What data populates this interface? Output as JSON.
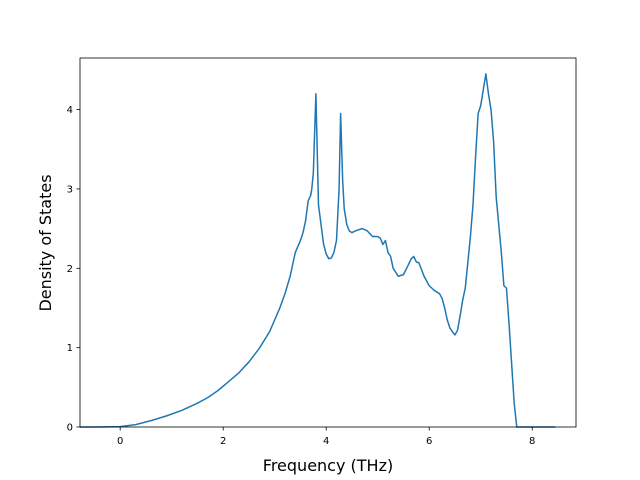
{
  "chart_data": {
    "type": "line",
    "title": "",
    "xlabel": "Frequency (THz)",
    "ylabel": "Density of States",
    "xlim": [
      -0.78,
      8.85
    ],
    "ylim": [
      0,
      4.65
    ],
    "x_ticks": [
      0,
      2,
      4,
      6,
      8
    ],
    "y_ticks": [
      0,
      1,
      2,
      3,
      4
    ],
    "grid": false,
    "legend": "none",
    "line_color": "#1f77b4",
    "series": [
      {
        "x": [
          -0.78,
          -0.4,
          0.0,
          0.3,
          0.6,
          0.9,
          1.2,
          1.5,
          1.7,
          1.9,
          2.1,
          2.3,
          2.5,
          2.7,
          2.9,
          3.0,
          3.1,
          3.2,
          3.3,
          3.4,
          3.5,
          3.55,
          3.6,
          3.65,
          3.7,
          3.72,
          3.75,
          3.8,
          3.85,
          3.9,
          3.95,
          4.0,
          4.05,
          4.1,
          4.15,
          4.2,
          4.25,
          4.28,
          4.32,
          4.35,
          4.4,
          4.45,
          4.5,
          4.6,
          4.7,
          4.8,
          4.9,
          5.0,
          5.05,
          5.1,
          5.15,
          5.2,
          5.25,
          5.3,
          5.4,
          5.5,
          5.6,
          5.65,
          5.7,
          5.75,
          5.8,
          5.9,
          6.0,
          6.1,
          6.2,
          6.25,
          6.3,
          6.35,
          6.4,
          6.45,
          6.5,
          6.55,
          6.6,
          6.65,
          6.7,
          6.8,
          6.85,
          6.9,
          6.95,
          7.0,
          7.1,
          7.15,
          7.2,
          7.25,
          7.3,
          7.4,
          7.45,
          7.5,
          7.55,
          7.6,
          7.65,
          7.7,
          8.0,
          8.45
        ],
        "y": [
          0.0,
          0.0,
          0.005,
          0.03,
          0.08,
          0.14,
          0.21,
          0.3,
          0.37,
          0.46,
          0.57,
          0.68,
          0.82,
          0.99,
          1.2,
          1.35,
          1.5,
          1.68,
          1.9,
          2.2,
          2.35,
          2.45,
          2.6,
          2.85,
          2.92,
          3.0,
          3.2,
          4.2,
          2.8,
          2.55,
          2.3,
          2.18,
          2.12,
          2.13,
          2.2,
          2.35,
          3.0,
          3.95,
          3.1,
          2.75,
          2.55,
          2.47,
          2.45,
          2.48,
          2.5,
          2.47,
          2.4,
          2.4,
          2.38,
          2.3,
          2.35,
          2.2,
          2.15,
          2.0,
          1.9,
          1.92,
          2.05,
          2.12,
          2.15,
          2.08,
          2.07,
          1.9,
          1.78,
          1.72,
          1.68,
          1.62,
          1.5,
          1.35,
          1.25,
          1.2,
          1.16,
          1.22,
          1.4,
          1.6,
          1.75,
          2.4,
          2.8,
          3.4,
          3.95,
          4.05,
          4.45,
          4.2,
          4.0,
          3.6,
          2.9,
          2.2,
          1.78,
          1.75,
          1.3,
          0.8,
          0.3,
          0.0,
          0.0,
          0.0
        ]
      }
    ]
  }
}
